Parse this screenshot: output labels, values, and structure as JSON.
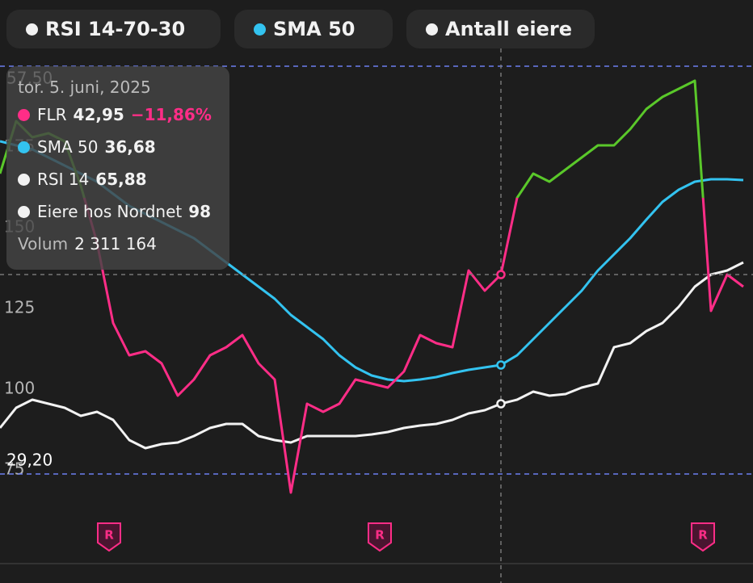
{
  "toggles": [
    {
      "label": "RSI 14-70-30",
      "color": "#f2f2f2"
    },
    {
      "label": "SMA 50",
      "color": "#33c3f0"
    },
    {
      "label": "Antall eiere",
      "color": "#f2f2f2"
    }
  ],
  "tooltip": {
    "date": "tor. 5. juni, 2025",
    "rows": [
      {
        "name": "FLR",
        "value": "42,95",
        "change": "−11,86%",
        "color": "#ff2d87"
      },
      {
        "name": "SMA 50",
        "value": "36,68",
        "color": "#33c3f0"
      },
      {
        "name": "RSI 14",
        "value": "65,88",
        "color": "#f2f2f2"
      },
      {
        "name": "Eiere hos Nordnet",
        "value": "98",
        "color": "#f2f2f2"
      }
    ],
    "volume_label": "Volum",
    "volume": "2 311 164"
  },
  "chart_data": {
    "type": "line",
    "x": [
      0,
      1,
      2,
      3,
      4,
      5,
      6,
      7,
      8,
      9,
      10,
      11,
      12,
      13,
      14,
      15,
      16,
      17,
      18,
      19,
      20,
      21,
      22,
      23,
      24,
      25,
      26,
      27,
      28,
      29,
      30,
      31,
      32,
      33,
      34,
      35,
      36,
      37,
      38,
      39,
      40,
      41,
      42,
      43,
      44,
      45,
      46
    ],
    "xlim": [
      0,
      46
    ],
    "ylim": [
      60,
      200
    ],
    "yticks": [
      75,
      100,
      125,
      150,
      175
    ],
    "reference_lines": [
      {
        "value": 200,
        "label": "57,50"
      },
      {
        "value": 73.75,
        "label": "29,20"
      }
    ],
    "hover_index": 31,
    "markers": [
      {
        "x": 6.75,
        "label": "R"
      },
      {
        "x": 23.5,
        "label": "R"
      },
      {
        "x": 43.5,
        "label": "R"
      }
    ],
    "series": [
      {
        "name": "Antall eiere",
        "color": "#f2f2f2",
        "values": [
          88,
          94.25,
          96.75,
          95.5,
          94.25,
          91.75,
          93,
          90.5,
          84.25,
          81.75,
          83,
          83.5,
          85.5,
          88,
          89.25,
          89.25,
          85.5,
          84.25,
          83.5,
          85.5,
          85.5,
          85.5,
          85.5,
          86,
          86.75,
          88,
          88.75,
          89.25,
          90.5,
          92.5,
          93.5,
          95.5,
          96.75,
          99.25,
          98,
          98.5,
          100.5,
          101.75,
          113,
          114.25,
          118,
          120.5,
          125.5,
          131.75,
          135.5,
          136.75,
          139.25
        ]
      },
      {
        "name": "SMA 50",
        "color": "#33c3f0",
        "values": [
          176.75,
          175.5,
          174.25,
          171.75,
          169.25,
          166.75,
          164.25,
          160.5,
          156.75,
          154.25,
          151.75,
          149.25,
          146.75,
          143,
          139.25,
          135.5,
          131.75,
          128,
          123,
          119.25,
          115.5,
          110.5,
          106.75,
          104.25,
          103,
          102.5,
          103,
          103.75,
          105,
          106,
          106.75,
          107.5,
          110.5,
          115.5,
          120.5,
          125.5,
          130.5,
          136.75,
          141.75,
          146.75,
          152.5,
          158,
          161.75,
          164.25,
          165,
          165,
          164.75
        ]
      },
      {
        "name": "FLR",
        "color": "#ff2d87",
        "above_color": "#5ac82a",
        "threshold": 159.25,
        "values": [
          166.75,
          183,
          178,
          179.25,
          176.75,
          163,
          145.5,
          120.5,
          110.5,
          111.75,
          108,
          98,
          103,
          110.5,
          113,
          116.75,
          108,
          103,
          68,
          95.5,
          93,
          95.5,
          103,
          101.75,
          100.5,
          105.5,
          116.75,
          114.25,
          113,
          136.75,
          130.5,
          135.5,
          159.25,
          166.75,
          164.25,
          168,
          171.75,
          175.5,
          175.5,
          180.5,
          186.75,
          190.5,
          193,
          195.5,
          124.25,
          135.5,
          131.75
        ]
      }
    ]
  }
}
